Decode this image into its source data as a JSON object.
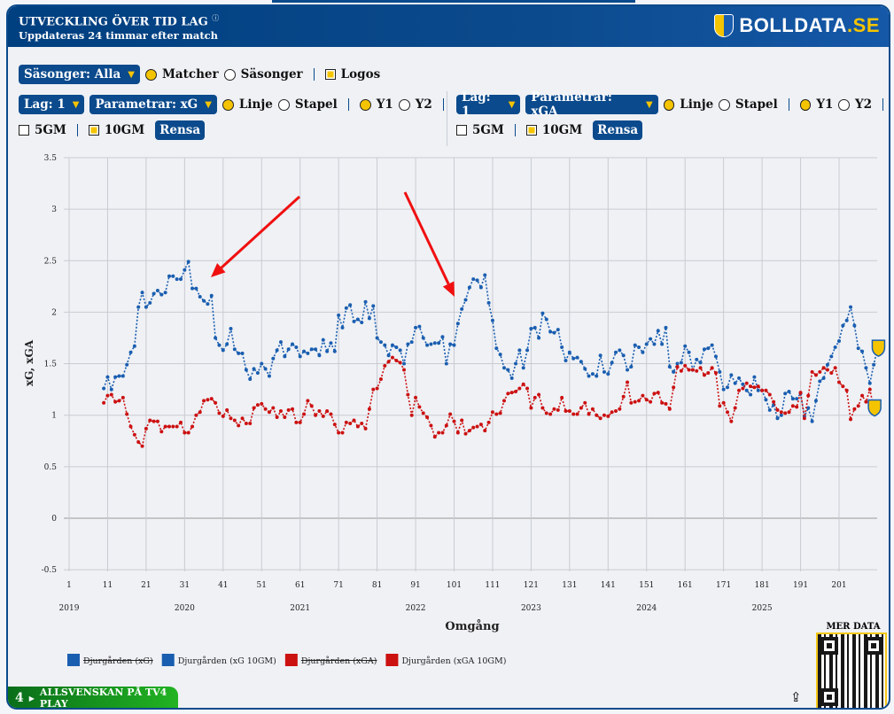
{
  "header": {
    "title": "UTVECKLING ÖVER TID LAG",
    "info": "ⓘ",
    "subtitle": "Uppdateras 24 timmar efter match",
    "brand_main": "BOLLDATA",
    "brand_tld": ".SE"
  },
  "controls": {
    "seasons_select": "Säsonger: Alla",
    "matcher": "Matcher",
    "sasonger": "Säsonger",
    "logos": "Logos",
    "left": {
      "lag": "Lag: 1",
      "param": "Parametrar: xG",
      "linje": "Linje",
      "stapel": "Stapel",
      "y1": "Y1",
      "y2": "Y2",
      "gm5": "5GM",
      "gm10": "10GM",
      "rensa": "Rensa"
    },
    "right": {
      "lag": "Lag: 1",
      "param": "Parametrar: xGA",
      "linje": "Linje",
      "stapel": "Stapel",
      "y1": "Y1",
      "y2": "Y2",
      "gm5": "5GM",
      "gm10": "10GM",
      "rensa": "Rensa"
    }
  },
  "footer": {
    "tv4": "ALLSVENSKAN PÅ TV4 PLAY",
    "tv4_logo": "4",
    "mer_data": "MER DATA",
    "share_icon": "share-icon"
  },
  "chart_data": {
    "type": "line",
    "title": "",
    "xlabel": "Omgång",
    "ylabel": "xG, xGA",
    "xlim": [
      1,
      211
    ],
    "ylim": [
      -0.5,
      3.5
    ],
    "grid": true,
    "yticks": [
      "3.5",
      "3",
      "2.5",
      "2",
      "1.5",
      "1",
      "0.5",
      "0",
      "-0.5"
    ],
    "xticks": [
      "1",
      "11",
      "21",
      "31",
      "41",
      "51",
      "61",
      "71",
      "81",
      "91",
      "101",
      "111",
      "121",
      "131",
      "141",
      "151",
      "161",
      "171",
      "181",
      "191",
      "201"
    ],
    "years": [
      {
        "label": "2019",
        "round": 1
      },
      {
        "label": "2020",
        "round": 31
      },
      {
        "label": "2021",
        "round": 61
      },
      {
        "label": "2022",
        "round": 91
      },
      {
        "label": "2023",
        "round": 121
      },
      {
        "label": "2024",
        "round": 151
      },
      {
        "label": "2025",
        "round": 181
      }
    ],
    "legend": [
      {
        "label": "Djurgården (xG)",
        "color": "#1a5eb0",
        "hidden": true
      },
      {
        "label": "Djurgården (xG 10GM)",
        "color": "#1a5eb0",
        "hidden": false
      },
      {
        "label": "Djurgården (xGA)",
        "color": "#cc1111",
        "hidden": true
      },
      {
        "label": "Djurgården (xGA 10GM)",
        "color": "#cc1111",
        "hidden": false
      }
    ],
    "series": [
      {
        "name": "Djurgården (xG 10GM)",
        "color": "#1a5eb0",
        "x_start": 10,
        "values": [
          1.26,
          1.37,
          1.25,
          1.37,
          1.38,
          1.38,
          1.49,
          1.61,
          1.67,
          2.05,
          2.19,
          2.05,
          2.09,
          2.18,
          2.21,
          2.17,
          2.19,
          2.35,
          2.35,
          2.32,
          2.32,
          2.41,
          2.49,
          2.23,
          2.23,
          2.15,
          2.11,
          2.08,
          2.16,
          1.75,
          1.68,
          1.63,
          1.69,
          1.84,
          1.64,
          1.6,
          1.6,
          1.44,
          1.35,
          1.45,
          1.41,
          1.5,
          1.45,
          1.38,
          1.55,
          1.63,
          1.71,
          1.57,
          1.64,
          1.69,
          1.66,
          1.57,
          1.62,
          1.6,
          1.64,
          1.64,
          1.58,
          1.73,
          1.62,
          1.7,
          1.62,
          1.97,
          1.85,
          2.04,
          2.07,
          1.91,
          1.93,
          1.9,
          2.1,
          1.94,
          2.06,
          1.75,
          1.71,
          1.68,
          1.58,
          1.68,
          1.66,
          1.63,
          1.5,
          1.69,
          1.71,
          1.85,
          1.86,
          1.75,
          1.68,
          1.69,
          1.7,
          1.7,
          1.76,
          1.5,
          1.69,
          1.68,
          1.89,
          2.03,
          2.12,
          2.24,
          2.32,
          2.31,
          2.24,
          2.36,
          2.09,
          1.92,
          1.65,
          1.59,
          1.46,
          1.44,
          1.36,
          1.5,
          1.63,
          1.46,
          1.63,
          1.84,
          1.85,
          1.75,
          1.99,
          1.93,
          1.81,
          1.8,
          1.83,
          1.66,
          1.53,
          1.61,
          1.55,
          1.56,
          1.52,
          1.45,
          1.38,
          1.4,
          1.38,
          1.58,
          1.42,
          1.4,
          1.51,
          1.61,
          1.63,
          1.58,
          1.44,
          1.47,
          1.68,
          1.66,
          1.61,
          1.69,
          1.74,
          1.69,
          1.82,
          1.69,
          1.85,
          1.47,
          1.42,
          1.5,
          1.51,
          1.67,
          1.61,
          1.44,
          1.54,
          1.51,
          1.64,
          1.65,
          1.68,
          1.57,
          1.42,
          1.25,
          1.27,
          1.39,
          1.31,
          1.36,
          1.3,
          1.24,
          1.2,
          1.37,
          1.24,
          1.24,
          1.15,
          1.05,
          1.1,
          0.97,
          1.0,
          1.21,
          1.23,
          1.16,
          1.16,
          1.21,
          0.99,
          1.07,
          0.94,
          1.14,
          1.33,
          1.36,
          1.49,
          1.57,
          1.66,
          1.72,
          1.87,
          1.92,
          2.05,
          1.87,
          1.65,
          1.62,
          1.46,
          1.31,
          1.49,
          1.65
        ]
      },
      {
        "name": "Djurgården (xGA 10GM)",
        "color": "#cc1111",
        "x_start": 10,
        "values": [
          1.12,
          1.19,
          1.2,
          1.13,
          1.14,
          1.17,
          1.01,
          0.89,
          0.81,
          0.74,
          0.7,
          0.87,
          0.95,
          0.94,
          0.94,
          0.84,
          0.89,
          0.89,
          0.89,
          0.89,
          0.93,
          0.83,
          0.83,
          0.89,
          1.0,
          1.03,
          1.14,
          1.15,
          1.16,
          1.12,
          1.02,
          0.99,
          1.05,
          0.97,
          0.95,
          0.9,
          0.97,
          0.92,
          0.92,
          1.07,
          1.1,
          1.11,
          1.06,
          1.03,
          1.07,
          0.98,
          1.04,
          0.98,
          1.05,
          1.06,
          0.93,
          0.93,
          1.01,
          1.14,
          1.09,
          1.0,
          1.04,
          0.99,
          1.04,
          1.01,
          0.91,
          0.83,
          0.83,
          0.93,
          0.92,
          0.95,
          0.89,
          0.92,
          0.87,
          1.06,
          1.25,
          1.26,
          1.35,
          1.48,
          1.52,
          1.56,
          1.53,
          1.51,
          1.44,
          1.2,
          1.0,
          1.17,
          1.08,
          1.02,
          0.98,
          0.9,
          0.79,
          0.83,
          0.83,
          0.9,
          1.01,
          0.94,
          0.83,
          0.95,
          0.82,
          0.85,
          0.88,
          0.89,
          0.91,
          0.85,
          0.93,
          1.03,
          1.01,
          1.02,
          1.14,
          1.21,
          1.22,
          1.23,
          1.26,
          1.3,
          1.26,
          1.07,
          1.17,
          1.2,
          1.07,
          1.02,
          1.01,
          1.06,
          1.05,
          1.17,
          1.04,
          1.04,
          1.01,
          1.01,
          1.07,
          1.12,
          1.01,
          1.06,
          1.0,
          0.97,
          1.0,
          0.99,
          1.03,
          1.04,
          1.06,
          1.18,
          1.32,
          1.12,
          1.13,
          1.14,
          1.19,
          1.15,
          1.13,
          1.21,
          1.22,
          1.12,
          1.11,
          1.06,
          1.27,
          1.47,
          1.43,
          1.48,
          1.44,
          1.44,
          1.43,
          1.46,
          1.39,
          1.41,
          1.46,
          1.41,
          1.09,
          1.12,
          1.03,
          0.94,
          1.07,
          1.24,
          1.26,
          1.31,
          1.28,
          1.27,
          1.28,
          1.24,
          1.24,
          1.2,
          1.13,
          1.05,
          1.03,
          1.02,
          1.03,
          1.09,
          1.08,
          1.22,
          0.97,
          1.19,
          1.42,
          1.39,
          1.42,
          1.46,
          1.44,
          1.41,
          1.46,
          1.32,
          1.28,
          1.24,
          0.96,
          1.06,
          1.09,
          1.19,
          1.13,
          1.25,
          1.07
        ]
      }
    ]
  }
}
